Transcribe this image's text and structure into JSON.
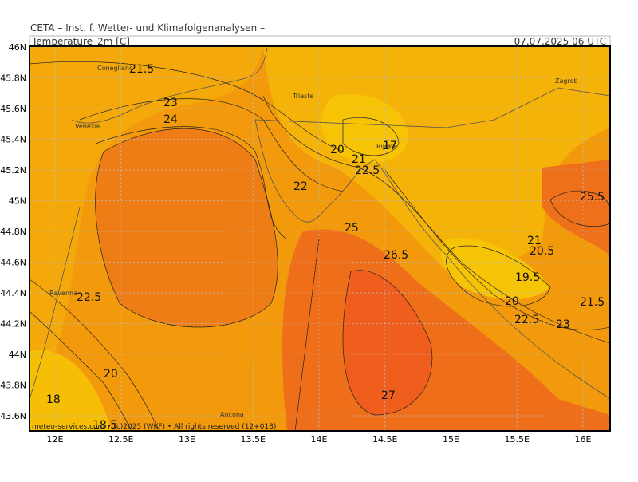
{
  "header": {
    "source": "CETA – Inst. f. Wetter- und Klimafolgenanalysen –",
    "variable": "Temperature_2m [C]",
    "time": "07.07.2025 06 UTC"
  },
  "map": {
    "lat_ticks": [
      {
        "value": 46,
        "label": "46N"
      },
      {
        "value": 45.8,
        "label": "45.8N"
      },
      {
        "value": 45.6,
        "label": "45.6N"
      },
      {
        "value": 45.4,
        "label": "45.4N"
      },
      {
        "value": 45.2,
        "label": "45.2N"
      },
      {
        "value": 45,
        "label": "45N"
      },
      {
        "value": 44.8,
        "label": "44.8N"
      },
      {
        "value": 44.6,
        "label": "44.6N"
      },
      {
        "value": 44.4,
        "label": "44.4N"
      },
      {
        "value": 44.2,
        "label": "44.2N"
      },
      {
        "value": 44,
        "label": "44N"
      },
      {
        "value": 43.8,
        "label": "43.8N"
      },
      {
        "value": 43.6,
        "label": "43.6N"
      }
    ],
    "lon_ticks": [
      {
        "value": 12,
        "label": "12E"
      },
      {
        "value": 12.5,
        "label": "12.5E"
      },
      {
        "value": 13,
        "label": "13E"
      },
      {
        "value": 13.5,
        "label": "13.5E"
      },
      {
        "value": 14,
        "label": "14E"
      },
      {
        "value": 14.5,
        "label": "14.5E"
      },
      {
        "value": 15,
        "label": "15E"
      },
      {
        "value": 15.5,
        "label": "15.5E"
      },
      {
        "value": 16,
        "label": "16E"
      }
    ],
    "cities": [
      "Conegliano",
      "Venezia",
      "Trieste",
      "Rijeka",
      "Zagreb",
      "Ravenna",
      "Ancona"
    ],
    "contour_labels": [
      "21.5",
      "23",
      "24",
      "20",
      "21",
      "22.5",
      "17",
      "22",
      "25",
      "26.5",
      "25.5",
      "21",
      "20.5",
      "19.5",
      "20",
      "22.5",
      "23",
      "21.5",
      "22.5",
      "20",
      "18",
      "18.5",
      "27"
    ]
  },
  "footer": "meteo-services.com • (c)2025 (WKF) • All rights reserved (12+018)"
}
